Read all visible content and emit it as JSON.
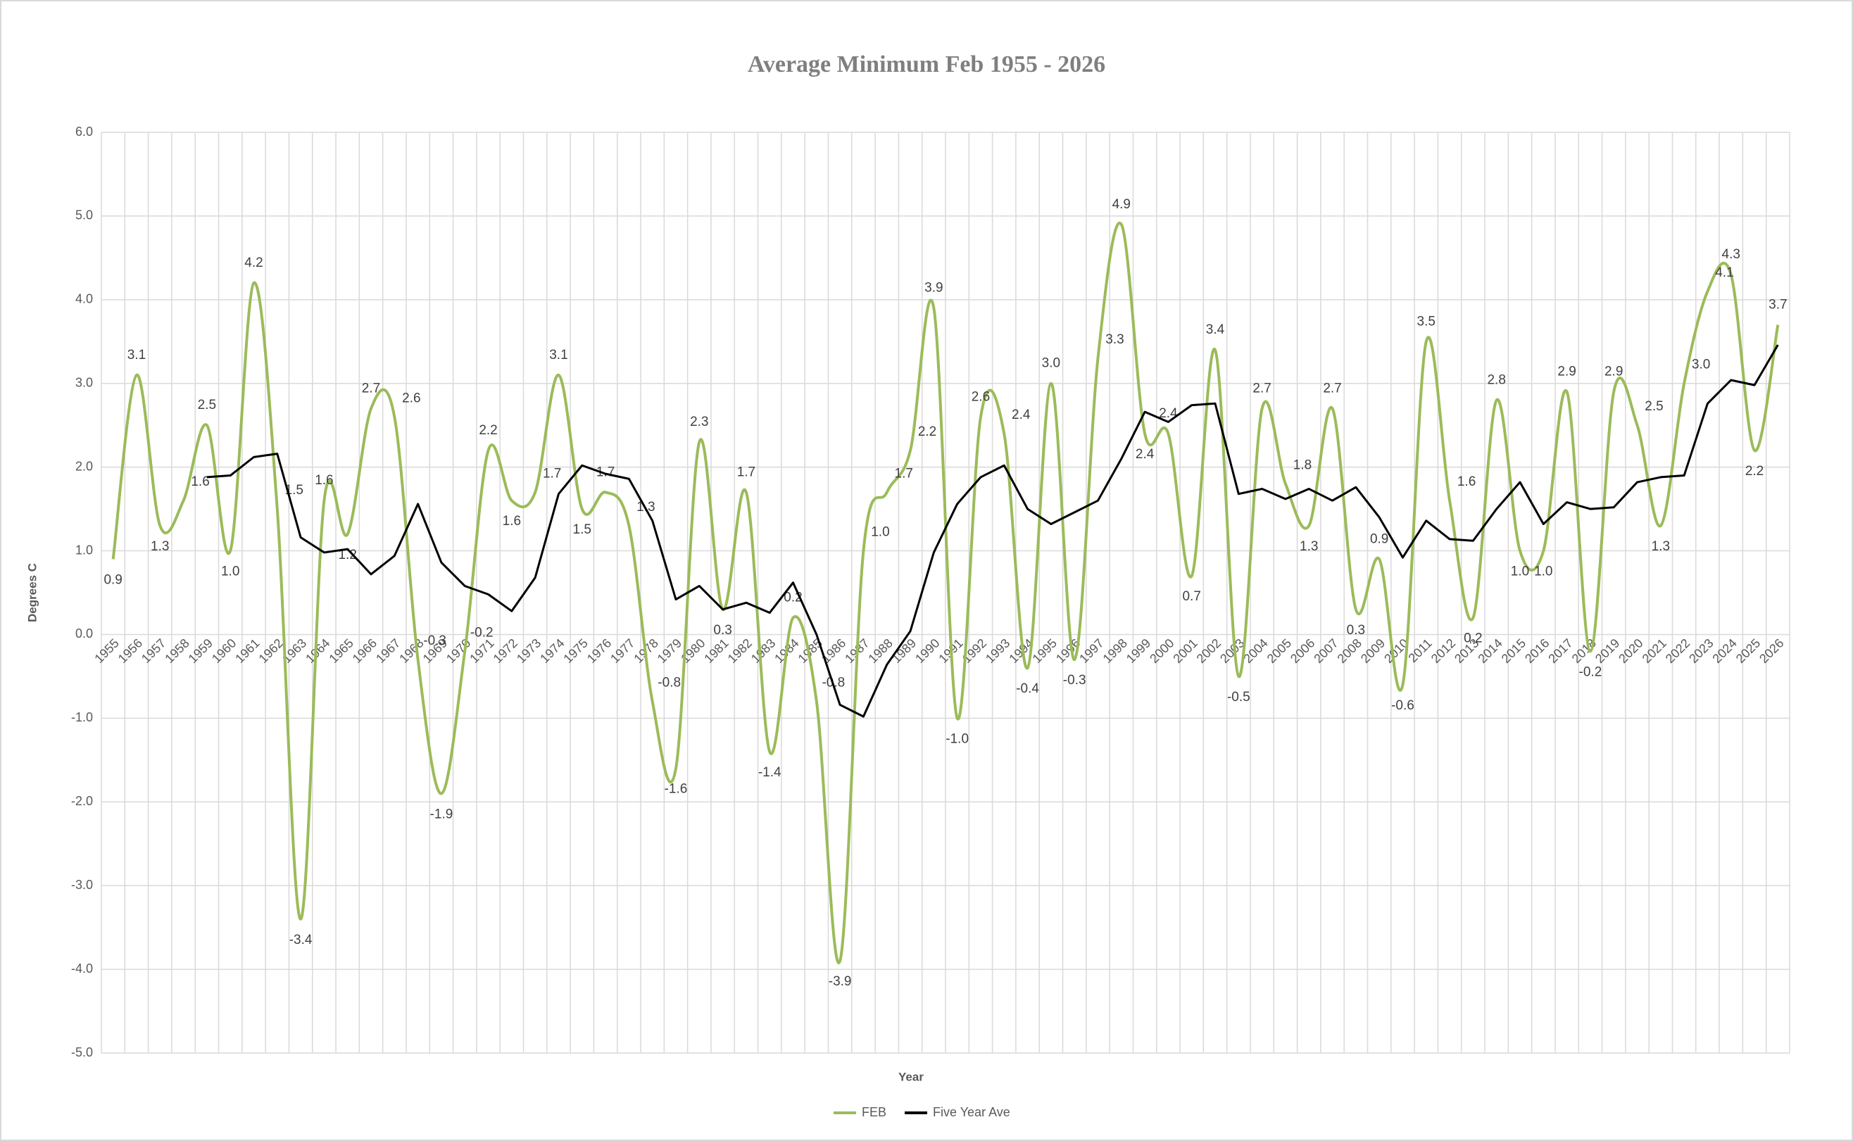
{
  "chart_data": {
    "type": "line",
    "title": "Average Minimum Feb 1955 - 2026",
    "x_label": "Year",
    "y_label": "Degrees C",
    "categories": [
      1955,
      1956,
      1957,
      1958,
      1959,
      1960,
      1961,
      1962,
      1963,
      1964,
      1965,
      1966,
      1967,
      1968,
      1969,
      1970,
      1971,
      1972,
      1973,
      1974,
      1975,
      1976,
      1977,
      1978,
      1979,
      1980,
      1981,
      1982,
      1983,
      1984,
      1985,
      1986,
      1987,
      1988,
      1989,
      1990,
      1991,
      1992,
      1993,
      1994,
      1995,
      1996,
      1997,
      1998,
      1999,
      2000,
      2001,
      2002,
      2003,
      2004,
      2005,
      2006,
      2007,
      2008,
      2009,
      2010,
      2011,
      2012,
      2013,
      2014,
      2015,
      2016,
      2017,
      2018,
      2019,
      2020,
      2021,
      2022,
      2023,
      2024,
      2025,
      2026
    ],
    "series": [
      {
        "name": "FEB",
        "color": "#9bbb59",
        "smooth": true,
        "values": [
          0.9,
          3.1,
          1.3,
          1.6,
          2.5,
          1.0,
          4.2,
          1.5,
          -3.4,
          1.6,
          1.2,
          2.7,
          2.6,
          -0.3,
          -1.9,
          -0.2,
          2.2,
          1.6,
          1.7,
          3.1,
          1.5,
          1.7,
          1.3,
          -0.8,
          -1.6,
          2.3,
          0.3,
          1.7,
          -1.4,
          0.2,
          -0.8,
          -3.9,
          1.0,
          1.7,
          2.2,
          3.9,
          -1.0,
          2.6,
          2.4,
          -0.4,
          3.0,
          -0.3,
          3.3,
          4.9,
          2.4,
          2.4,
          0.7,
          3.4,
          -0.5,
          2.7,
          1.8,
          1.3,
          2.7,
          0.3,
          0.9,
          -0.6,
          3.5,
          1.6,
          0.2,
          2.8,
          1.0,
          1.0,
          2.9,
          -0.2,
          2.9,
          2.5,
          1.3,
          3.0,
          4.1,
          4.3,
          2.2,
          3.7
        ],
        "value_labels": [
          "0.9",
          "3.1",
          "1.3",
          "1.6",
          "2.5",
          "1.0",
          "4.2",
          "1.5",
          "-3.4",
          "1.6",
          "1.2",
          "2.7",
          "2.6",
          "-0.3",
          "-1.9",
          "-0.2",
          "2.2",
          "1.6",
          "1.7",
          "3.1",
          "1.5",
          "1.7",
          "1.3",
          "-0.8",
          "-1.6",
          "2.3",
          "0.3",
          "1.7",
          "-1.4",
          "0.2",
          "-0.8",
          "-3.9",
          "1.0",
          "1.7",
          "2.2",
          "3.9",
          "-1.0",
          "2.6",
          "2.4",
          "-0.4",
          "3.0",
          "-0.3",
          "3.3",
          "4.9",
          "2.4",
          "2.4",
          "0.7",
          "3.4",
          "-0.5",
          "2.7",
          "1.8",
          "1.3",
          "2.7",
          "0.3",
          "0.9",
          "-0.6",
          "3.5",
          "1.6",
          "0.2",
          "2.8",
          "1.0",
          "1.0",
          "2.9",
          "-0.2",
          "2.9",
          "2.5",
          "1.3",
          "3.0",
          "4.1",
          "4.3",
          "2.2",
          "3.7"
        ]
      },
      {
        "name": "Five Year Ave",
        "color": "#000000",
        "smooth": false,
        "values": [
          null,
          null,
          null,
          null,
          1.88,
          1.9,
          2.12,
          2.16,
          1.16,
          0.98,
          1.02,
          0.72,
          0.94,
          1.56,
          0.86,
          0.58,
          0.48,
          0.28,
          0.68,
          1.68,
          2.02,
          1.92,
          1.86,
          1.36,
          0.42,
          0.58,
          0.3,
          0.38,
          0.26,
          0.62,
          0.0,
          -0.84,
          -0.98,
          -0.36,
          0.04,
          0.98,
          1.56,
          1.88,
          2.02,
          1.5,
          1.32,
          1.46,
          1.6,
          2.1,
          2.66,
          2.54,
          2.74,
          2.76,
          1.68,
          1.74,
          1.62,
          1.74,
          1.6,
          1.76,
          1.4,
          0.92,
          1.36,
          1.14,
          1.12,
          1.5,
          1.82,
          1.32,
          1.58,
          1.5,
          1.52,
          1.82,
          1.88,
          1.9,
          2.76,
          3.04,
          2.98,
          3.46
        ]
      }
    ],
    "ylim": [
      -5,
      6
    ],
    "yticks": [
      {
        "value": -5,
        "label": "-5.0"
      },
      {
        "value": -4,
        "label": "-4.0"
      },
      {
        "value": -3,
        "label": "-3.0"
      },
      {
        "value": -2,
        "label": "-2.0"
      },
      {
        "value": -1,
        "label": "-1.0"
      },
      {
        "value": 0,
        "label": "0.0"
      },
      {
        "value": 1,
        "label": "1.0"
      },
      {
        "value": 2,
        "label": "2.0"
      },
      {
        "value": 3,
        "label": "3.0"
      },
      {
        "value": 4,
        "label": "4.0"
      },
      {
        "value": 5,
        "label": "5.0"
      },
      {
        "value": 6,
        "label": "6.0"
      }
    ],
    "grid": true,
    "legend": "bottom"
  }
}
